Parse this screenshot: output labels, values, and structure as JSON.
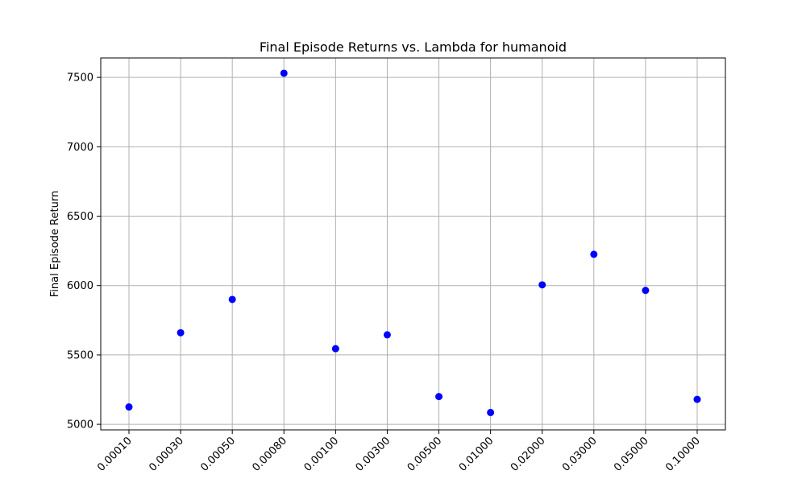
{
  "chart_data": {
    "type": "scatter",
    "title": "Final Episode Returns vs. Lambda for humanoid",
    "xlabel": "",
    "ylabel": "Final Episode Return",
    "x_scale": "categorical",
    "categories": [
      "0.00010",
      "0.00030",
      "0.00050",
      "0.00080",
      "0.00100",
      "0.00300",
      "0.00500",
      "0.01000",
      "0.02000",
      "0.03000",
      "0.05000",
      "0.10000"
    ],
    "values": [
      5125,
      5660,
      5900,
      7530,
      5545,
      5645,
      5200,
      5085,
      6005,
      6225,
      5965,
      5180
    ],
    "ylim": [
      4960,
      7640
    ],
    "yticks": [
      5000,
      5500,
      6000,
      6500,
      7000,
      7500
    ],
    "grid": true,
    "legend": "none",
    "marker_color": "#0000ff"
  }
}
